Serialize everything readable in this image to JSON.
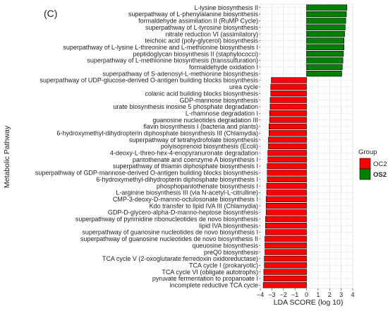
{
  "panel_label": "(C)",
  "chart_data": {
    "type": "bar",
    "orientation": "horizontal",
    "xlabel": "LDA SCORE (log 10)",
    "ylabel": "Metabolic Pathway",
    "xlim": [
      -4,
      4
    ],
    "xticks": [
      -4,
      -3,
      -2,
      -1,
      0,
      1,
      2,
      3,
      4
    ],
    "grid": true,
    "legend": {
      "title": "Group",
      "position": "right",
      "entries": [
        {
          "label": "OC2",
          "color": "#ff0000"
        },
        {
          "label": "OS2",
          "color": "#008000"
        }
      ]
    },
    "categories": [
      "L-lysine biosynthesis II",
      "superpathway of L-phenylalanine biosynthesis",
      "formaldehyde assimilation II (RuMP Cycle)",
      "superpathway of L-tyrosine biosynthesis",
      "nitrate reduction VI (assimilatory)",
      "teichoic acid (poly-glycerol) biosynthesis",
      "superpathway of L-lysine L-threonine and L-methionine biosynthesis I",
      "peptidoglycan biosynthesis II (staphylococci)",
      "superpathway of L-methionine biosynthesis (transsulfuration)",
      "formaldehyde oxidation I",
      "superpathway of S-adenosyl-L-methionine biosynthesis",
      "superpathway of UDP-glucose-derived O-antigen building blocks biosynthesis",
      "urea cycle",
      "colanic acid building blocks biosynthesis",
      "GDP-mannose biosynthesis",
      "urate biosynthesis inosine 5 phosphate degradation",
      "L-rhamnose degradation I",
      "guanosine nucleotides degradation III",
      "flavin biosynthesis I (bacteria and plants)",
      "6-hydroxymethyl-dihydropterin diphosphate biosynthesis III (Chlamydia)",
      "superpathway of tetrahydrofolate biosynthesis",
      "polyisoprenoid biosynthesis (Ecoli)",
      "4-deoxy-L-threo-hex-4-enopyranuronate degradation",
      "pantothenate and coenzyme A biosynthesis I",
      "superpathway of thiamin diphosphate biosynthesis I",
      "superpathway of GDP-mannose-derived O-antigen building blocks biosynthesis",
      "6-hydroxymethyl-dihydropterin diphosphate biosynthesis I",
      "phosphopantothenate biosynthesis I",
      "L-arginine biosynthesis III (via N-acetyl-L-citrulline)",
      "CMP-3-deoxy-D-manno-octulosonate biosynthesis I",
      "Kdo transfer to lipid IVA III (Chlamydia)",
      "GDP-D-glycero-alpha-D-manno-heptose biosynthesis",
      "superpathway of pyrimidine ribonucleotides de novo biosynthesis",
      "lipid IVA biosynthesis",
      "superpathway of guanosine nucleotides de novo biosynthesis I",
      "superpathway of guanosine nucleotides de novo biosynthesis II",
      "queuosine biosynthesis",
      "preQ0 biosynthesis",
      "TCA cycle V (2-oxoglutarate:ferredoxin oxidoreductase)",
      "TCA cycle I (prokaryotic)",
      "TCA cycle VI (obligate autotrophs)",
      "pyruvate fermentation to propanoate I",
      "incomplete reductive TCA cycle"
    ],
    "values": [
      3.5,
      3.45,
      3.4,
      3.35,
      3.3,
      3.25,
      3.25,
      3.2,
      3.15,
      3.1,
      3.05,
      -3.05,
      -3.1,
      -3.1,
      -3.15,
      -3.15,
      -3.2,
      -3.2,
      -3.25,
      -3.25,
      -3.3,
      -3.3,
      -3.35,
      -3.35,
      -3.4,
      -3.4,
      -3.4,
      -3.45,
      -3.45,
      -3.5,
      -3.5,
      -3.5,
      -3.55,
      -3.55,
      -3.55,
      -3.6,
      -3.6,
      -3.6,
      -3.65,
      -3.65,
      -3.7,
      -3.7,
      -3.75
    ],
    "groups": [
      "OS2",
      "OS2",
      "OS2",
      "OS2",
      "OS2",
      "OS2",
      "OS2",
      "OS2",
      "OS2",
      "OS2",
      "OS2",
      "OC2",
      "OC2",
      "OC2",
      "OC2",
      "OC2",
      "OC2",
      "OC2",
      "OC2",
      "OC2",
      "OC2",
      "OC2",
      "OC2",
      "OC2",
      "OC2",
      "OC2",
      "OC2",
      "OC2",
      "OC2",
      "OC2",
      "OC2",
      "OC2",
      "OC2",
      "OC2",
      "OC2",
      "OC2",
      "OC2",
      "OC2",
      "OC2",
      "OC2",
      "OC2",
      "OC2",
      "OC2"
    ]
  }
}
